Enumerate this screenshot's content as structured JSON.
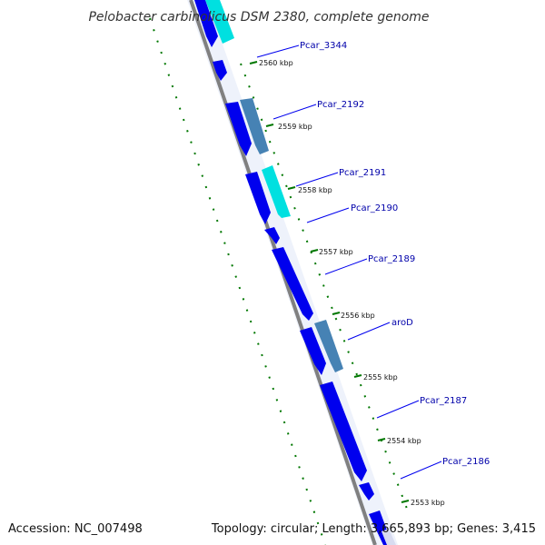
{
  "title": "Pelobacter carbinolicus DSM 2380, complete genome",
  "footer": {
    "accession": "Accession: NC_007498",
    "summary": "Topology: circular; Length: 3,665,893 bp; Genes: 3,415"
  },
  "colors": {
    "forward_gene": "#0000ee",
    "reverse_gene": "#00e0e0",
    "other_gene": "#4682b4",
    "backbone": "#808080",
    "ticks": "#007700",
    "label_text": "#0000aa",
    "label_line": "#0000ee"
  },
  "kbp_ticks": [
    "2560 kbp",
    "2559 kbp",
    "2558 kbp",
    "2557 kbp",
    "2556 kbp",
    "2555 kbp",
    "2554 kbp",
    "2553 kbp"
  ],
  "gene_labels": [
    "Pcar_3344",
    "Pcar_2192",
    "Pcar_2191",
    "Pcar_2190",
    "Pcar_2189",
    "aroD",
    "Pcar_2187",
    "Pcar_2186"
  ]
}
